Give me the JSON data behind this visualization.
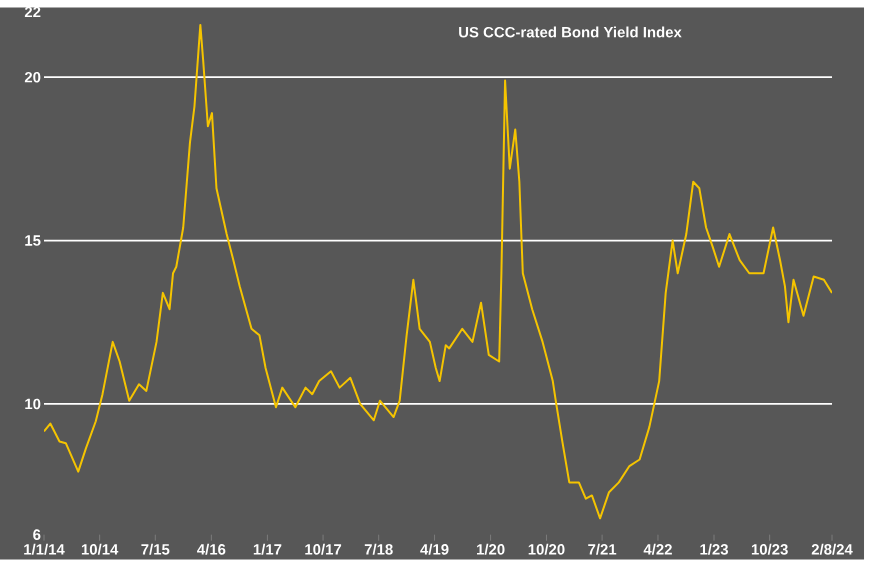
{
  "chart_data": {
    "type": "line",
    "title": "US CCC-rated Bond Yield Index",
    "x": [
      "2014-01-01",
      "2014-02-01",
      "2014-03-18",
      "2014-04-18",
      "2014-06-18",
      "2014-07-26",
      "2014-09-12",
      "2014-10-15",
      "2014-12-04",
      "2015-01-07",
      "2015-02-23",
      "2015-04-12",
      "2015-05-18",
      "2015-07-07",
      "2015-08-07",
      "2015-09-09",
      "2015-09-26",
      "2015-10-12",
      "2015-11-15",
      "2015-12-18",
      "2016-01-09",
      "2016-02-07",
      "2016-02-21",
      "2016-03-15",
      "2016-04-04",
      "2016-04-26",
      "2016-06-15",
      "2016-07-18",
      "2016-08-18",
      "2016-10-15",
      "2016-11-23",
      "2016-12-23",
      "2017-02-12",
      "2017-03-15",
      "2017-05-18",
      "2017-07-07",
      "2017-08-09",
      "2017-09-12",
      "2017-11-09",
      "2017-12-21",
      "2018-02-12",
      "2018-04-01",
      "2018-06-07",
      "2018-07-07",
      "2018-09-12",
      "2018-10-12",
      "2018-11-15",
      "2018-12-18",
      "2019-01-18",
      "2019-03-09",
      "2019-04-07",
      "2019-04-26",
      "2019-05-26",
      "2019-06-12",
      "2019-08-15",
      "2019-10-04",
      "2019-11-15",
      "2019-12-23",
      "2020-02-12",
      "2020-02-23",
      "2020-03-12",
      "2020-04-04",
      "2020-05-01",
      "2020-05-21",
      "2020-06-07",
      "2020-07-23",
      "2020-09-12",
      "2020-11-01",
      "2020-11-18",
      "2020-12-18",
      "2021-01-21",
      "2021-03-09",
      "2021-04-12",
      "2021-05-12",
      "2021-06-21",
      "2021-08-04",
      "2021-09-21",
      "2021-11-12",
      "2022-01-01",
      "2022-02-18",
      "2022-04-07",
      "2022-05-09",
      "2022-06-12",
      "2022-07-07",
      "2022-08-18",
      "2022-09-21",
      "2022-10-21",
      "2022-11-23",
      "2022-12-26",
      "2023-01-26",
      "2023-03-18",
      "2023-05-07",
      "2023-06-23",
      "2023-09-01",
      "2023-10-18",
      "2023-11-21",
      "2023-12-15",
      "2024-01-01",
      "2024-01-26",
      "2024-03-15",
      "2024-05-04",
      "2024-06-23",
      "2024-08-02"
    ],
    "series": [
      {
        "color": "#f5c400",
        "values": [
          9.16,
          9.4,
          8.85,
          8.8,
          7.93,
          8.65,
          9.47,
          10.3,
          11.9,
          11.3,
          10.1,
          10.6,
          10.4,
          11.9,
          13.4,
          12.9,
          14.0,
          14.2,
          15.4,
          18.0,
          19.1,
          21.6,
          20.5,
          18.5,
          18.9,
          16.6,
          15.2,
          14.4,
          13.6,
          12.3,
          12.1,
          11.1,
          9.9,
          10.5,
          9.9,
          10.5,
          10.3,
          10.7,
          11.0,
          10.5,
          10.8,
          10.0,
          9.5,
          10.1,
          9.6,
          10.1,
          12.1,
          13.8,
          12.3,
          11.9,
          11.1,
          10.7,
          11.8,
          11.7,
          12.3,
          11.9,
          13.1,
          11.5,
          11.3,
          14.0,
          19.9,
          17.2,
          18.4,
          16.8,
          14.0,
          12.9,
          11.9,
          10.7,
          10.0,
          8.85,
          7.6,
          7.6,
          7.1,
          7.2,
          6.5,
          7.3,
          7.6,
          8.1,
          8.3,
          9.3,
          10.7,
          13.4,
          15.0,
          14.0,
          15.2,
          16.8,
          16.6,
          15.4,
          14.8,
          14.2,
          15.2,
          14.4,
          14.0,
          14.0,
          15.4,
          14.4,
          13.6,
          12.5,
          13.8,
          12.7,
          13.9,
          13.8,
          13.4
        ]
      }
    ],
    "xlim": [
      "2014-01-01",
      "2024-08-02"
    ],
    "xticks": [
      {
        "value": "2014-01-01",
        "label": "1/1/14"
      },
      {
        "value": "2014-10-01",
        "label": "10/14"
      },
      {
        "value": "2015-07-01",
        "label": "7/15"
      },
      {
        "value": "2016-04-01",
        "label": "4/16"
      },
      {
        "value": "2017-01-01",
        "label": "1/17"
      },
      {
        "value": "2017-10-01",
        "label": "10/17"
      },
      {
        "value": "2018-07-01",
        "label": "7/18"
      },
      {
        "value": "2019-04-01",
        "label": "4/19"
      },
      {
        "value": "2020-01-01",
        "label": "1/20"
      },
      {
        "value": "2020-10-01",
        "label": "10/20"
      },
      {
        "value": "2021-07-01",
        "label": "7/21"
      },
      {
        "value": "2022-04-01",
        "label": "4/22"
      },
      {
        "value": "2023-01-01",
        "label": "1/23"
      },
      {
        "value": "2023-10-01",
        "label": "10/23"
      },
      {
        "value": "2024-08-02",
        "label": "2/8/24"
      }
    ],
    "ylim": [
      6,
      22
    ],
    "yticks": [
      6,
      10,
      15,
      20,
      22
    ],
    "grid": "y",
    "marker": "none",
    "line_style": "solid"
  }
}
